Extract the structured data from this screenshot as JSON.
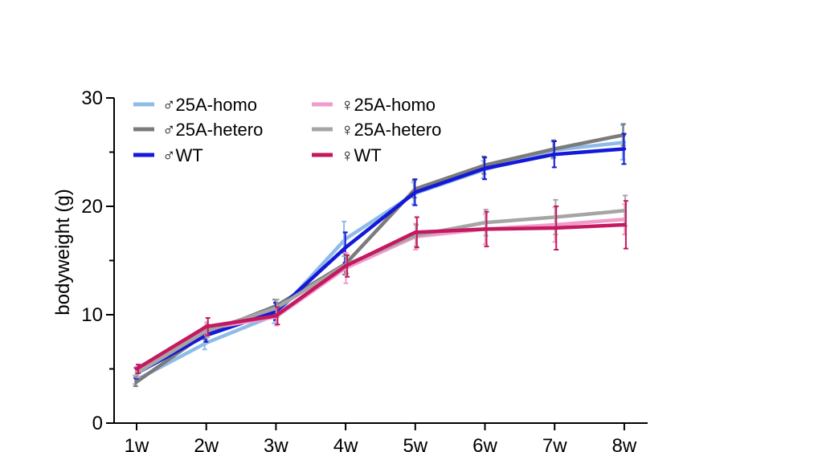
{
  "chart_data": {
    "type": "line",
    "title": "",
    "xlabel": "",
    "ylabel": "bodyweight (g)",
    "categories": [
      "1w",
      "2w",
      "3w",
      "4w",
      "5w",
      "6w",
      "7w",
      "8w"
    ],
    "ylim": [
      0,
      30
    ],
    "yticks": [
      "0",
      "10",
      "20",
      "30"
    ],
    "grid": false,
    "legend_position": "top-left",
    "series": [
      {
        "name": "♂25A-homo",
        "color": "#8fbbe8",
        "values": [
          4.0,
          7.4,
          10.0,
          17.0,
          21.2,
          23.4,
          25.2,
          25.9
        ],
        "errors": [
          0.4,
          0.6,
          0.8,
          1.6,
          1.0,
          0.8,
          0.8,
          1.6
        ]
      },
      {
        "name": "♂25A-hetero",
        "color": "#7b7b7b",
        "values": [
          3.8,
          8.3,
          10.8,
          14.7,
          21.6,
          23.8,
          25.3,
          26.6
        ],
        "errors": [
          0.4,
          0.6,
          0.6,
          1.0,
          0.8,
          0.8,
          0.8,
          1.0
        ]
      },
      {
        "name": "♂WT",
        "color": "#1418d8",
        "values": [
          4.6,
          8.1,
          10.3,
          16.2,
          21.3,
          23.5,
          24.8,
          25.3
        ],
        "errors": [
          0.5,
          0.6,
          0.8,
          1.4,
          1.2,
          1.0,
          1.2,
          1.4
        ]
      },
      {
        "name": "♀25A-homo",
        "color": "#f09ccb",
        "values": [
          4.8,
          8.7,
          9.8,
          14.3,
          17.2,
          17.9,
          18.3,
          18.8
        ],
        "errors": [
          0.4,
          0.6,
          0.8,
          1.4,
          1.2,
          1.4,
          1.6,
          1.4
        ]
      },
      {
        "name": "♀25A-hetero",
        "color": "#a5a5a5",
        "values": [
          4.6,
          8.5,
          10.6,
          14.6,
          17.3,
          18.5,
          19.0,
          19.6
        ],
        "errors": [
          0.4,
          0.6,
          0.8,
          0.8,
          1.0,
          1.2,
          1.6,
          1.4
        ]
      },
      {
        "name": "♀WT",
        "color": "#c4185f",
        "values": [
          5.0,
          8.9,
          9.9,
          14.5,
          17.6,
          17.9,
          18.0,
          18.3
        ],
        "errors": [
          0.4,
          0.8,
          0.8,
          1.0,
          1.4,
          1.6,
          2.0,
          2.2
        ]
      }
    ]
  }
}
